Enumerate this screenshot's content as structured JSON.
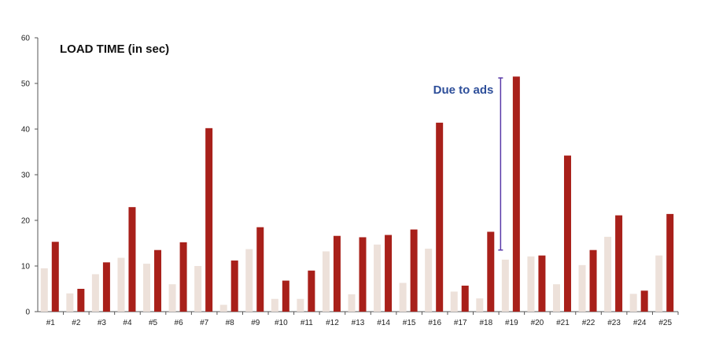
{
  "chart_data": {
    "type": "bar",
    "title": "LOAD TIME (in sec)",
    "xlabel": "",
    "ylabel": "",
    "ylim": [
      0,
      60
    ],
    "yticks": [
      0,
      10,
      20,
      30,
      40,
      50,
      60
    ],
    "grid": false,
    "legend": "none",
    "categories": [
      "#1",
      "#2",
      "#3",
      "#4",
      "#5",
      "#6",
      "#7",
      "#8",
      "#9",
      "#10",
      "#11",
      "#12",
      "#13",
      "#14",
      "#15",
      "#16",
      "#17",
      "#18",
      "#19",
      "#20",
      "#21",
      "#22",
      "#23",
      "#24",
      "#25"
    ],
    "series": [
      {
        "color": "#ede1da",
        "values": [
          9.5,
          4,
          8.2,
          11.8,
          10.5,
          6,
          10,
          1.5,
          13.7,
          2.8,
          2.8,
          13.2,
          3.8,
          14.7,
          6.3,
          13.8,
          4.4,
          2.9,
          11.4,
          12.1,
          6,
          10.2,
          16.4,
          3.9,
          12.3
        ]
      },
      {
        "color": "#a8201a",
        "values": [
          15.3,
          5,
          10.8,
          22.9,
          13.5,
          15.2,
          40.2,
          11.2,
          18.5,
          6.8,
          9,
          16.6,
          16.3,
          16.8,
          18,
          41.4,
          5.7,
          17.5,
          51.5,
          12.3,
          34.2,
          13.5,
          21.1,
          4.6,
          21.4
        ]
      }
    ],
    "annotations": [
      {
        "text": "Due to ads",
        "category": "#19",
        "from": 13.5,
        "to": 51.2,
        "color": "#2e4f9a",
        "bracket_color": "#5a3aa8"
      }
    ]
  }
}
